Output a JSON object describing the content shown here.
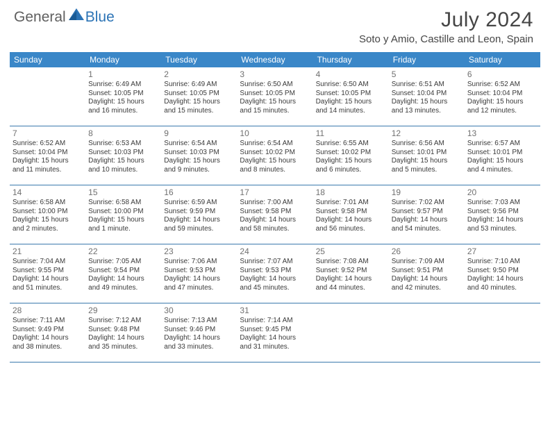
{
  "logo": {
    "general": "General",
    "blue": "Blue"
  },
  "title": "July 2024",
  "location": "Soto y Amio, Castille and Leon, Spain",
  "colors": {
    "header_bg": "#3a87c8",
    "header_text": "#ffffff",
    "row_border": "#3a79ad",
    "daynum": "#707070",
    "body_text": "#3a3a3a",
    "title_color": "#454545"
  },
  "day_headers": [
    "Sunday",
    "Monday",
    "Tuesday",
    "Wednesday",
    "Thursday",
    "Friday",
    "Saturday"
  ],
  "weeks": [
    [
      {
        "num": "",
        "lines": []
      },
      {
        "num": "1",
        "lines": [
          "Sunrise: 6:49 AM",
          "Sunset: 10:05 PM",
          "Daylight: 15 hours",
          "and 16 minutes."
        ]
      },
      {
        "num": "2",
        "lines": [
          "Sunrise: 6:49 AM",
          "Sunset: 10:05 PM",
          "Daylight: 15 hours",
          "and 15 minutes."
        ]
      },
      {
        "num": "3",
        "lines": [
          "Sunrise: 6:50 AM",
          "Sunset: 10:05 PM",
          "Daylight: 15 hours",
          "and 15 minutes."
        ]
      },
      {
        "num": "4",
        "lines": [
          "Sunrise: 6:50 AM",
          "Sunset: 10:05 PM",
          "Daylight: 15 hours",
          "and 14 minutes."
        ]
      },
      {
        "num": "5",
        "lines": [
          "Sunrise: 6:51 AM",
          "Sunset: 10:04 PM",
          "Daylight: 15 hours",
          "and 13 minutes."
        ]
      },
      {
        "num": "6",
        "lines": [
          "Sunrise: 6:52 AM",
          "Sunset: 10:04 PM",
          "Daylight: 15 hours",
          "and 12 minutes."
        ]
      }
    ],
    [
      {
        "num": "7",
        "lines": [
          "Sunrise: 6:52 AM",
          "Sunset: 10:04 PM",
          "Daylight: 15 hours",
          "and 11 minutes."
        ]
      },
      {
        "num": "8",
        "lines": [
          "Sunrise: 6:53 AM",
          "Sunset: 10:03 PM",
          "Daylight: 15 hours",
          "and 10 minutes."
        ]
      },
      {
        "num": "9",
        "lines": [
          "Sunrise: 6:54 AM",
          "Sunset: 10:03 PM",
          "Daylight: 15 hours",
          "and 9 minutes."
        ]
      },
      {
        "num": "10",
        "lines": [
          "Sunrise: 6:54 AM",
          "Sunset: 10:02 PM",
          "Daylight: 15 hours",
          "and 8 minutes."
        ]
      },
      {
        "num": "11",
        "lines": [
          "Sunrise: 6:55 AM",
          "Sunset: 10:02 PM",
          "Daylight: 15 hours",
          "and 6 minutes."
        ]
      },
      {
        "num": "12",
        "lines": [
          "Sunrise: 6:56 AM",
          "Sunset: 10:01 PM",
          "Daylight: 15 hours",
          "and 5 minutes."
        ]
      },
      {
        "num": "13",
        "lines": [
          "Sunrise: 6:57 AM",
          "Sunset: 10:01 PM",
          "Daylight: 15 hours",
          "and 4 minutes."
        ]
      }
    ],
    [
      {
        "num": "14",
        "lines": [
          "Sunrise: 6:58 AM",
          "Sunset: 10:00 PM",
          "Daylight: 15 hours",
          "and 2 minutes."
        ]
      },
      {
        "num": "15",
        "lines": [
          "Sunrise: 6:58 AM",
          "Sunset: 10:00 PM",
          "Daylight: 15 hours",
          "and 1 minute."
        ]
      },
      {
        "num": "16",
        "lines": [
          "Sunrise: 6:59 AM",
          "Sunset: 9:59 PM",
          "Daylight: 14 hours",
          "and 59 minutes."
        ]
      },
      {
        "num": "17",
        "lines": [
          "Sunrise: 7:00 AM",
          "Sunset: 9:58 PM",
          "Daylight: 14 hours",
          "and 58 minutes."
        ]
      },
      {
        "num": "18",
        "lines": [
          "Sunrise: 7:01 AM",
          "Sunset: 9:58 PM",
          "Daylight: 14 hours",
          "and 56 minutes."
        ]
      },
      {
        "num": "19",
        "lines": [
          "Sunrise: 7:02 AM",
          "Sunset: 9:57 PM",
          "Daylight: 14 hours",
          "and 54 minutes."
        ]
      },
      {
        "num": "20",
        "lines": [
          "Sunrise: 7:03 AM",
          "Sunset: 9:56 PM",
          "Daylight: 14 hours",
          "and 53 minutes."
        ]
      }
    ],
    [
      {
        "num": "21",
        "lines": [
          "Sunrise: 7:04 AM",
          "Sunset: 9:55 PM",
          "Daylight: 14 hours",
          "and 51 minutes."
        ]
      },
      {
        "num": "22",
        "lines": [
          "Sunrise: 7:05 AM",
          "Sunset: 9:54 PM",
          "Daylight: 14 hours",
          "and 49 minutes."
        ]
      },
      {
        "num": "23",
        "lines": [
          "Sunrise: 7:06 AM",
          "Sunset: 9:53 PM",
          "Daylight: 14 hours",
          "and 47 minutes."
        ]
      },
      {
        "num": "24",
        "lines": [
          "Sunrise: 7:07 AM",
          "Sunset: 9:53 PM",
          "Daylight: 14 hours",
          "and 45 minutes."
        ]
      },
      {
        "num": "25",
        "lines": [
          "Sunrise: 7:08 AM",
          "Sunset: 9:52 PM",
          "Daylight: 14 hours",
          "and 44 minutes."
        ]
      },
      {
        "num": "26",
        "lines": [
          "Sunrise: 7:09 AM",
          "Sunset: 9:51 PM",
          "Daylight: 14 hours",
          "and 42 minutes."
        ]
      },
      {
        "num": "27",
        "lines": [
          "Sunrise: 7:10 AM",
          "Sunset: 9:50 PM",
          "Daylight: 14 hours",
          "and 40 minutes."
        ]
      }
    ],
    [
      {
        "num": "28",
        "lines": [
          "Sunrise: 7:11 AM",
          "Sunset: 9:49 PM",
          "Daylight: 14 hours",
          "and 38 minutes."
        ]
      },
      {
        "num": "29",
        "lines": [
          "Sunrise: 7:12 AM",
          "Sunset: 9:48 PM",
          "Daylight: 14 hours",
          "and 35 minutes."
        ]
      },
      {
        "num": "30",
        "lines": [
          "Sunrise: 7:13 AM",
          "Sunset: 9:46 PM",
          "Daylight: 14 hours",
          "and 33 minutes."
        ]
      },
      {
        "num": "31",
        "lines": [
          "Sunrise: 7:14 AM",
          "Sunset: 9:45 PM",
          "Daylight: 14 hours",
          "and 31 minutes."
        ]
      },
      {
        "num": "",
        "lines": []
      },
      {
        "num": "",
        "lines": []
      },
      {
        "num": "",
        "lines": []
      }
    ]
  ]
}
